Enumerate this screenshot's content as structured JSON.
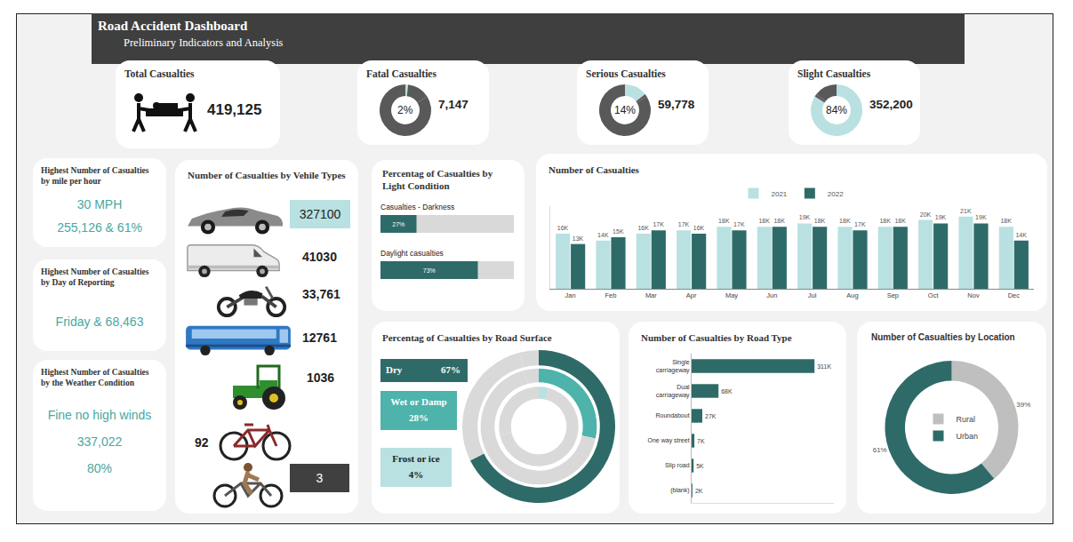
{
  "header": {
    "title": "Road Accident Dashboard",
    "subtitle": "Preliminary Indicators and Analysis"
  },
  "kpis": [
    {
      "title": "Total Casualties",
      "value": 419125,
      "value_label": "419,125"
    },
    {
      "title": "Fatal Casualties",
      "value": 7147,
      "value_label": "7,147",
      "percent_label": "2%",
      "color": "#b9e1e1"
    },
    {
      "title": "Serious Casualties",
      "value": 59778,
      "value_label": "59,778",
      "percent_label": "14%",
      "color": "#b9e1e1"
    },
    {
      "title": "Slight Casualties",
      "value": 352200,
      "value_label": "352,200",
      "percent_label": "84%",
      "color": "#b9e1e1"
    }
  ],
  "highlights": [
    {
      "title": "Highest Number of Casualties by mile per hour",
      "lines": [
        "30 MPH",
        "255,126 & 61%"
      ]
    },
    {
      "title": "Highest Number of Casualties by Day of Reporting",
      "lines": [
        "Friday & 68,463"
      ]
    },
    {
      "title": "Highest Number of Casualties by the Weather Condition",
      "lines": [
        "Fine no high winds",
        "337,022",
        "80%"
      ]
    }
  ],
  "vehicles": {
    "title": "Number of Casualties by Vehile Types",
    "values": [
      "327100",
      "41030",
      "33,761",
      "12761",
      "1036",
      "92",
      "3"
    ]
  },
  "chart_data": [
    {
      "type": "bar",
      "orientation": "horizontal",
      "title": "Percentag of Casualties by Light Condition",
      "categories": [
        "Casualties - Darkness",
        "Daylight casualties"
      ],
      "values": [
        27,
        73
      ],
      "value_labels": [
        "27%",
        "73%"
      ],
      "xlim": [
        0,
        100
      ],
      "tick_labels": false,
      "data_labels": true,
      "color": "#2e6b68"
    },
    {
      "type": "bar",
      "title": "Number of Casualties",
      "categories": [
        "Jan",
        "Feb",
        "Mar",
        "Apr",
        "May",
        "Jun",
        "Jul",
        "Aug",
        "Sep",
        "Oct",
        "Nov",
        "Dec"
      ],
      "series": [
        {
          "name": "2021",
          "color": "#b9e1e1",
          "values": [
            16000,
            14000,
            16000,
            17000,
            18000,
            18000,
            19000,
            18000,
            18000,
            20000,
            21000,
            18000
          ],
          "value_labels": [
            "16K",
            "14K",
            "16K",
            "17K",
            "18K",
            "18K",
            "19K",
            "18K",
            "18K",
            "20K",
            "21K",
            "18K"
          ]
        },
        {
          "name": "2022",
          "color": "#2e6b68",
          "values": [
            13000,
            15000,
            17000,
            16000,
            17000,
            18000,
            18000,
            17000,
            18000,
            19000,
            19000,
            14000
          ],
          "value_labels": [
            "13K",
            "15K",
            "17K",
            "16K",
            "17K",
            "18K",
            "18K",
            "17K",
            "18K",
            "19K",
            "19K",
            "14K"
          ]
        }
      ],
      "ylim": [
        0,
        24000
      ],
      "tick_labels": "x",
      "data_labels": true,
      "legend": "top"
    },
    {
      "type": "pie",
      "title": "Percentag of Casualties by Road Surface",
      "categories": [
        "Dry",
        "Wet or Damp",
        "Frost or ice"
      ],
      "values": [
        67,
        28,
        4
      ],
      "value_labels": [
        "67%",
        "28%",
        "4%"
      ],
      "colors": [
        "#2e6b68",
        "#4db3ab",
        "#b9e1e1"
      ]
    },
    {
      "type": "bar",
      "orientation": "horizontal",
      "title": "Number of Casualties by Road Type",
      "categories": [
        "Single carriageway",
        "Dual carriageway",
        "Roundabout",
        "One way street",
        "Slip road",
        "(blank)"
      ],
      "values": [
        311000,
        68000,
        27000,
        7000,
        5000,
        2000
      ],
      "value_labels": [
        "311K",
        "68K",
        "27K",
        "7K",
        "5K",
        "2K"
      ],
      "xlim": [
        0,
        360000
      ],
      "tick_labels": "y",
      "data_labels": true,
      "color": "#2e6b68"
    },
    {
      "type": "pie",
      "title": "Number of Casualties by Location",
      "categories": [
        "Rural",
        "Urban"
      ],
      "values": [
        39,
        61
      ],
      "value_labels": [
        "39%",
        "61%"
      ],
      "colors": [
        "#bfbfbf",
        "#2e6b68"
      ],
      "legend": "center",
      "data_labels": true
    }
  ]
}
